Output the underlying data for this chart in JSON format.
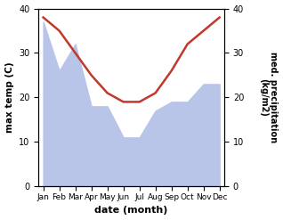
{
  "months": [
    "Jan",
    "Feb",
    "Mar",
    "Apr",
    "May",
    "Jun",
    "Jul",
    "Aug",
    "Sep",
    "Oct",
    "Nov",
    "Dec"
  ],
  "max_temp": [
    38.0,
    35.0,
    30.0,
    25.0,
    21.0,
    19.0,
    19.0,
    21.0,
    26.0,
    32.0,
    35.0,
    38.0
  ],
  "precipitation": [
    37.0,
    26.0,
    32.0,
    18.0,
    18.0,
    11.0,
    11.0,
    17.0,
    19.0,
    19.0,
    23.0,
    23.0
  ],
  "temp_color": "#c0392b",
  "precip_fill_color": "#b8c4e8",
  "ylim": [
    0,
    40
  ],
  "xlabel": "date (month)",
  "ylabel_left": "max temp (C)",
  "ylabel_right": "med. precipitation\n(kg/m2)",
  "bg_color": "#ffffff",
  "line_width": 1.8
}
